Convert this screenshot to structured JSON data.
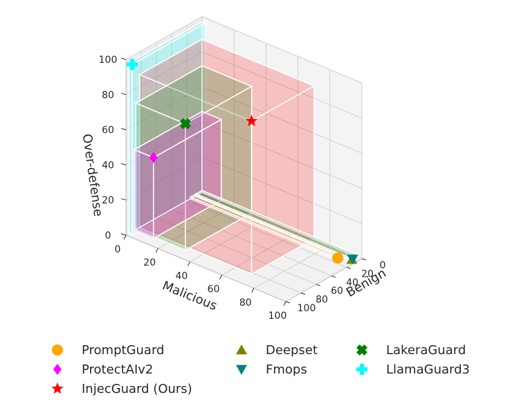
{
  "chart_data": {
    "type": "scatter",
    "xlabel": "Benign",
    "ylabel": "Malicious",
    "zlabel": "Over-defense",
    "xlim": [
      0,
      100
    ],
    "ylim": [
      0,
      100
    ],
    "zlim": [
      0,
      100
    ],
    "xticks": [
      "0",
      "20",
      "40",
      "60",
      "80",
      "100"
    ],
    "yticks": [
      "0",
      "20",
      "40",
      "60",
      "80",
      "100"
    ],
    "zticks": [
      "0",
      "20",
      "40",
      "60",
      "80",
      "100"
    ],
    "grid": true,
    "legend_position": "bottom",
    "series": [
      {
        "name": "PromptGuard",
        "marker": "circle",
        "color": "#FFA500",
        "x": 15,
        "y": 92,
        "z": 1
      },
      {
        "name": "ProtectAIv2",
        "marker": "diamond",
        "color": "#FF00FF",
        "x": 89,
        "y": 12,
        "z": 46
      },
      {
        "name": "InjecGuard (Ours)",
        "marker": "star",
        "color": "#FF0000",
        "x": 82,
        "y": 70,
        "z": 87
      },
      {
        "name": "Deepset",
        "marker": "triangle-up",
        "color": "#808000",
        "x": 9,
        "y": 98,
        "z": 1
      },
      {
        "name": "Fmops",
        "marker": "triangle-down",
        "color": "#008080",
        "x": 8,
        "y": 98,
        "z": 1
      },
      {
        "name": "LakeraGuard",
        "marker": "x",
        "color": "#008000",
        "x": 87,
        "y": 31,
        "z": 72
      },
      {
        "name": "LlamaGuard3",
        "marker": "plus",
        "color": "#00FFFF",
        "x": 96,
        "y": 2,
        "z": 97
      }
    ]
  }
}
